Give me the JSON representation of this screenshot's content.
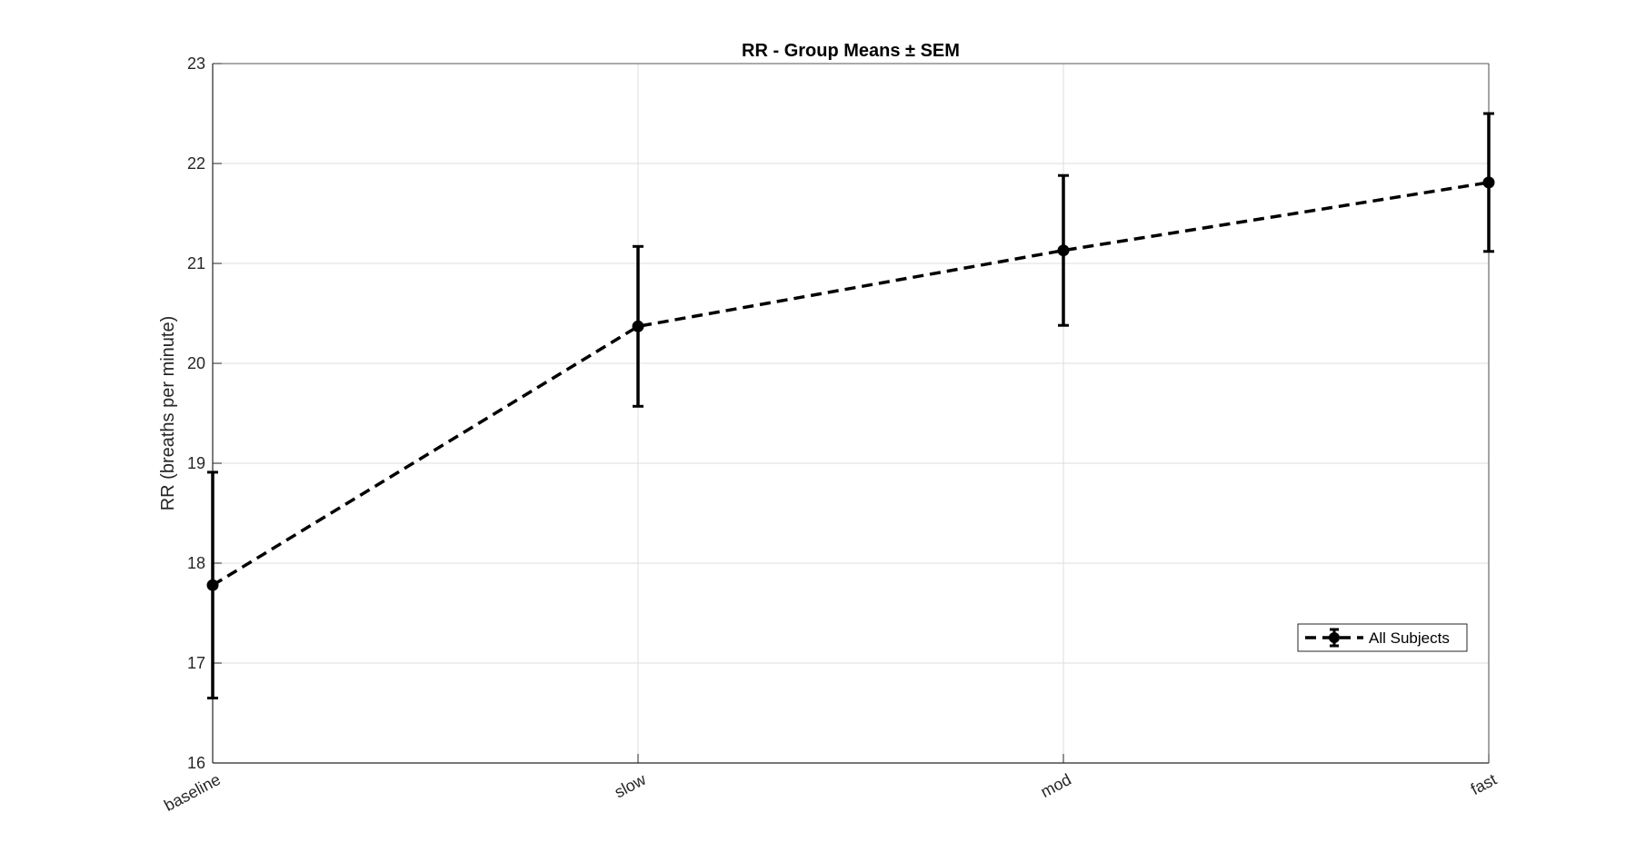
{
  "chart_data": {
    "type": "line",
    "title": "RR - Group Means ± SEM",
    "xlabel": "",
    "ylabel": "RR (breaths per minute)",
    "categories": [
      "baseline",
      "slow",
      "mod",
      "fast"
    ],
    "ylim": [
      16,
      23
    ],
    "yticks": [
      16,
      17,
      18,
      19,
      20,
      21,
      22,
      23
    ],
    "grid": true,
    "legend_position": "bottom-right",
    "series": [
      {
        "name": "All Subjects",
        "values": [
          17.78,
          20.37,
          21.13,
          21.81
        ],
        "sem": [
          1.13,
          0.8,
          0.75,
          0.69
        ],
        "line_style": "dashed",
        "marker": "circle",
        "color": "#000000"
      }
    ]
  }
}
